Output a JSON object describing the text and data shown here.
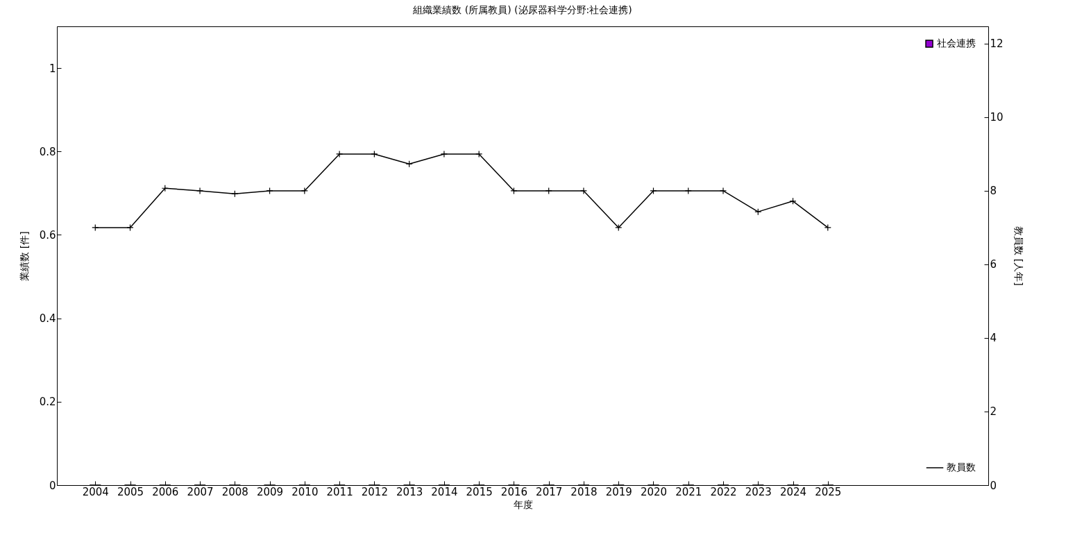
{
  "chart_data": {
    "type": "bar",
    "title": "組織業績数 (所属教員) (泌尿器科学分野:社会連携)",
    "xlabel": "年度",
    "ylabel": "業績数 [件]",
    "y2label": "教員数 [人年]",
    "x": [
      2004,
      2005,
      2006,
      2007,
      2008,
      2009,
      2010,
      2011,
      2012,
      2013,
      2014,
      2015,
      2016,
      2017,
      2018,
      2019,
      2020,
      2021,
      2022,
      2023,
      2024,
      2025
    ],
    "series": [
      {
        "name": "社会連携",
        "color": "#9400d3",
        "values": [
          0,
          0,
          0,
          0,
          0,
          0,
          0,
          0,
          0,
          0,
          0,
          0,
          0,
          0,
          0,
          0,
          0,
          0,
          0,
          0,
          0,
          0
        ]
      },
      {
        "name": "教員数",
        "type": "line",
        "axis": "y2",
        "color": "#000000",
        "values": [
          7,
          7,
          8.07,
          8,
          7.92,
          8,
          8,
          9,
          9,
          8.73,
          9,
          9,
          8,
          8,
          8,
          7,
          8,
          8,
          8,
          7.43,
          7.72,
          7
        ]
      }
    ],
    "xlim": [
      2003,
      2029.5
    ],
    "xticks": [
      2004,
      2005,
      2006,
      2007,
      2008,
      2009,
      2010,
      2011,
      2012,
      2013,
      2014,
      2015,
      2016,
      2017,
      2018,
      2019,
      2020,
      2021,
      2022,
      2023,
      2024,
      2025
    ],
    "ylim": [
      0,
      1.1
    ],
    "yticks": [
      0,
      0.2,
      0.4,
      0.6,
      0.8,
      1
    ],
    "y2lim": [
      0,
      12.47
    ],
    "y2ticks": [
      0,
      2,
      4,
      6,
      8,
      10,
      12
    ],
    "legend": "top right",
    "marker": "cross",
    "line_style": "solid",
    "grid": false
  }
}
